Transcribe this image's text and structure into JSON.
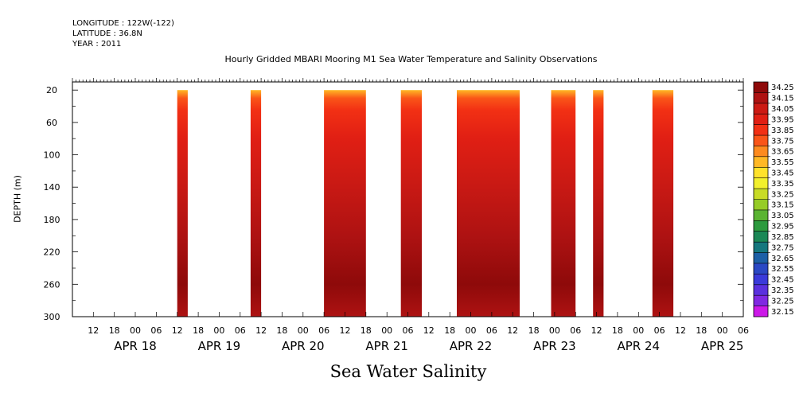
{
  "header": {
    "longitude": "LONGITUDE : 122W(-122)",
    "latitude": "LATITUDE : 36.8N",
    "year": "YEAR : 2011"
  },
  "chart_data": {
    "type": "heatmap",
    "title": "Hourly Gridded MBARI Mooring M1 Sea Water Temperature and Salinity Observations",
    "xlabel": "Sea Water Salinity",
    "ylabel": "DEPTH (m)",
    "y_range": [
      300,
      0
    ],
    "y_ticks": [
      20,
      60,
      100,
      140,
      180,
      220,
      260,
      300
    ],
    "x_range_hours": [
      0,
      192
    ],
    "x_hour_ticks": [
      "12",
      "18",
      "00",
      "06",
      "12",
      "18",
      "00",
      "06",
      "12",
      "18",
      "00",
      "06",
      "12",
      "18",
      "00",
      "06",
      "12",
      "18",
      "00",
      "06",
      "12",
      "18",
      "00",
      "06",
      "12",
      "18",
      "00",
      "06",
      "12",
      "18",
      "00",
      "06"
    ],
    "date_labels": [
      "APR 18",
      "APR 19",
      "APR 20",
      "APR 21",
      "APR 22",
      "APR 23",
      "APR 24",
      "APR 25"
    ],
    "data_segments": [
      {
        "start": "APR 19 06",
        "end": "APR 19 09"
      },
      {
        "start": "APR 20 03",
        "end": "APR 20 06"
      },
      {
        "start": "APR 21 00",
        "end": "APR 21 12"
      },
      {
        "start": "APR 21 22",
        "end": "APR 22 04"
      },
      {
        "start": "APR 22 14",
        "end": "APR 23 08"
      },
      {
        "start": "APR 23 17",
        "end": "APR 24 00"
      },
      {
        "start": "APR 24 05",
        "end": "APR 24 08"
      },
      {
        "start": "APR 24 22",
        "end": "APR 25 04"
      }
    ],
    "depth_profile": [
      {
        "depth": 20,
        "salinity": 33.55
      },
      {
        "depth": 30,
        "salinity": 33.75
      },
      {
        "depth": 45,
        "salinity": 33.85
      },
      {
        "depth": 80,
        "salinity": 33.95
      },
      {
        "depth": 130,
        "salinity": 34.05
      },
      {
        "depth": 200,
        "salinity": 34.15
      },
      {
        "depth": 260,
        "salinity": 34.25
      },
      {
        "depth": 300,
        "salinity": 34.15
      }
    ],
    "colorbar": {
      "levels": [
        "34.25",
        "34.15",
        "34.05",
        "33.95",
        "33.85",
        "33.75",
        "33.65",
        "33.55",
        "33.45",
        "33.35",
        "33.25",
        "33.15",
        "33.05",
        "32.95",
        "32.85",
        "32.75",
        "32.65",
        "32.55",
        "32.45",
        "32.35",
        "32.25",
        "32.15"
      ],
      "colors": [
        "#8e0a0a",
        "#ae1212",
        "#cc1a14",
        "#e01f14",
        "#f23014",
        "#fa5518",
        "#fe8a1e",
        "#ffb825",
        "#ffe22a",
        "#f2f02c",
        "#c8dc26",
        "#96cc26",
        "#5ab432",
        "#2c9a3e",
        "#1b8856",
        "#15777e",
        "#1c5fa6",
        "#2a48c4",
        "#3a3ada",
        "#5a30de",
        "#8028e2",
        "#cc18e8"
      ]
    }
  }
}
